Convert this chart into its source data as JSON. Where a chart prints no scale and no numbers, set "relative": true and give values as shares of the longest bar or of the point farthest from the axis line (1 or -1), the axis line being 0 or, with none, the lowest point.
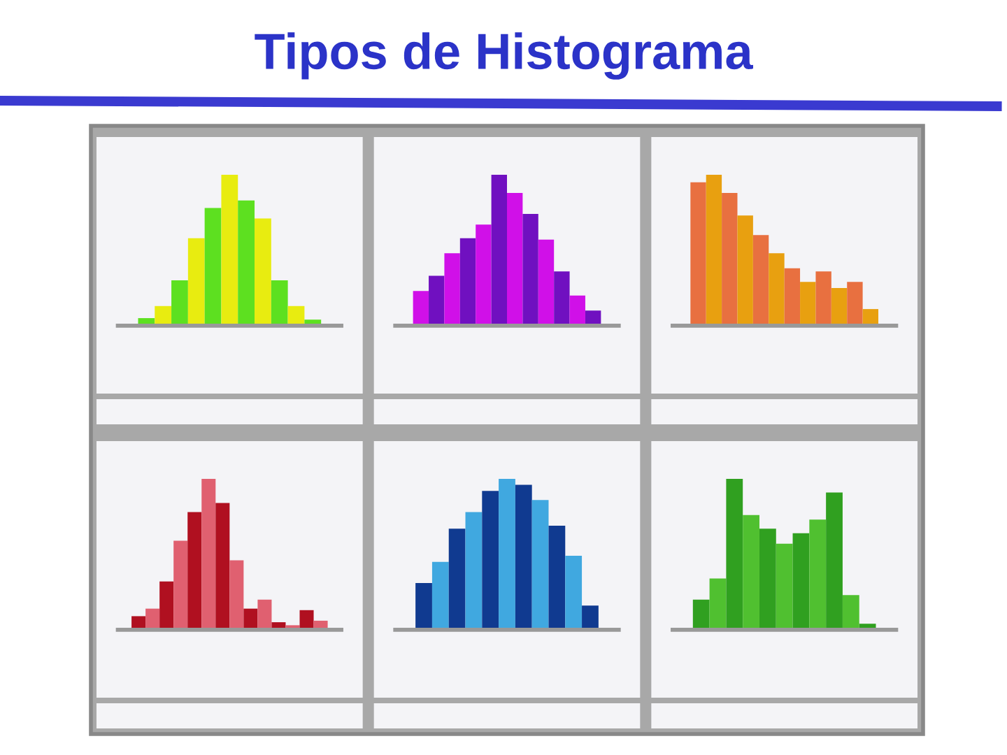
{
  "chart_data": [
    {
      "type": "other",
      "title": "Tipos de Histograma"
    },
    {
      "type": "bar",
      "relative": true,
      "categories": [
        null,
        null,
        null,
        null,
        null,
        null,
        null,
        null,
        null,
        null,
        null
      ],
      "values": [
        0.05,
        0.13,
        0.3,
        0.58,
        0.78,
        1,
        0.83,
        0.71,
        0.3,
        0.13,
        0.04
      ],
      "colors": [
        "#5de020",
        "#e8ec10",
        "#5de020",
        "#e8ec10",
        "#5de020",
        "#e8ec10",
        "#5de020",
        "#e8ec10",
        "#5de020",
        "#e8ec10",
        "#5de020"
      ]
    },
    {
      "type": "bar",
      "relative": true,
      "categories": [
        null,
        null,
        null,
        null,
        null,
        null,
        null,
        null,
        null,
        null,
        null,
        null
      ],
      "values": [
        0.23,
        0.33,
        0.48,
        0.58,
        0.67,
        1,
        0.88,
        0.74,
        0.57,
        0.36,
        0.2,
        0.1
      ],
      "colors": [
        "#d010e8",
        "#7010c0",
        "#d010e8",
        "#7010c0",
        "#d010e8",
        "#7010c0",
        "#d010e8",
        "#7010c0",
        "#d010e8",
        "#7010c0",
        "#d010e8",
        "#7010c0"
      ]
    },
    {
      "type": "bar",
      "relative": true,
      "categories": [
        null,
        null,
        null,
        null,
        null,
        null,
        null,
        null,
        null,
        null,
        null,
        null
      ],
      "values": [
        0.95,
        1,
        0.88,
        0.73,
        0.6,
        0.48,
        0.38,
        0.29,
        0.36,
        0.25,
        0.29,
        0.11
      ],
      "colors": [
        "#e87040",
        "#e8a010",
        "#e87040",
        "#e8a010",
        "#e87040",
        "#e8a010",
        "#e87040",
        "#e8a010",
        "#e87040",
        "#e8a010",
        "#e87040",
        "#e8a010"
      ]
    },
    {
      "type": "bar",
      "relative": true,
      "categories": [
        null,
        null,
        null,
        null,
        null,
        null,
        null,
        null,
        null,
        null,
        null,
        null,
        null,
        null
      ],
      "values": [
        0.09,
        0.14,
        0.32,
        0.59,
        0.78,
        1,
        0.84,
        0.46,
        0.14,
        0.2,
        0.05,
        0.03,
        0.13,
        0.06
      ],
      "colors": [
        "#b01020",
        "#e06070",
        "#b01020",
        "#e06070",
        "#b01020",
        "#e06070",
        "#b01020",
        "#e06070",
        "#b01020",
        "#e06070",
        "#b01020",
        "#e06070",
        "#b01020",
        "#e06070"
      ]
    },
    {
      "type": "bar",
      "relative": true,
      "categories": [
        null,
        null,
        null,
        null,
        null,
        null,
        null,
        null,
        null,
        null,
        null
      ],
      "values": [
        0.31,
        0.45,
        0.67,
        0.78,
        0.92,
        1,
        0.96,
        0.86,
        0.69,
        0.49,
        0.16
      ],
      "colors": [
        "#103a90",
        "#40a8e0",
        "#103a90",
        "#40a8e0",
        "#103a90",
        "#40a8e0",
        "#103a90",
        "#40a8e0",
        "#103a90",
        "#40a8e0",
        "#103a90"
      ]
    },
    {
      "type": "bar",
      "relative": true,
      "categories": [
        null,
        null,
        null,
        null,
        null,
        null,
        null,
        null,
        null,
        null,
        null
      ],
      "values": [
        0.2,
        0.34,
        1,
        0.76,
        0.67,
        0.57,
        0.64,
        0.73,
        0.91,
        0.23,
        0.04
      ],
      "colors": [
        "#30a020",
        "#50c030",
        "#30a020",
        "#50c030",
        "#30a020",
        "#50c030",
        "#30a020",
        "#50c030",
        "#30a020",
        "#50c030",
        "#30a020"
      ]
    }
  ]
}
